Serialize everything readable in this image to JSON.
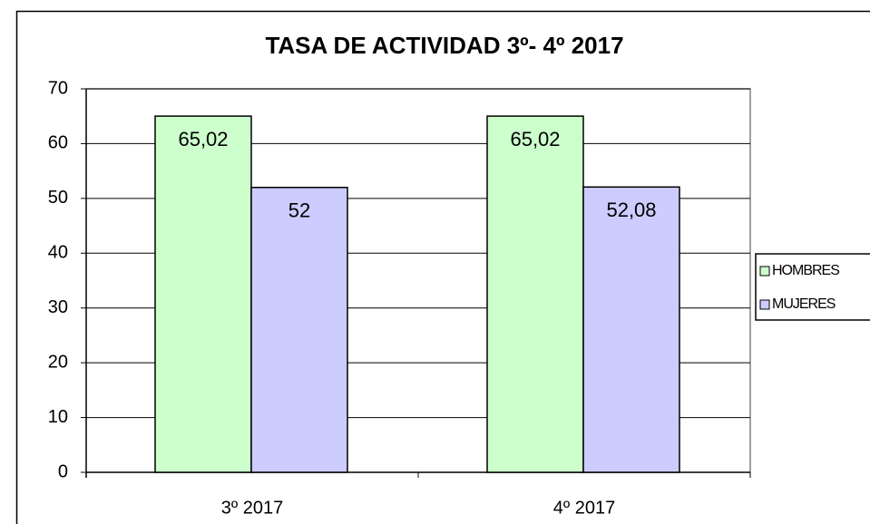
{
  "chart_data": {
    "type": "bar",
    "title": "TASA DE ACTIVIDAD 3º- 4º 2017",
    "categories": [
      "3º 2017",
      "4º 2017"
    ],
    "series": [
      {
        "name": "HOMBRES",
        "color": "#ccffcc",
        "values": [
          65.02,
          65.02
        ],
        "value_labels": [
          "65,02",
          "65,02"
        ]
      },
      {
        "name": "MUJERES",
        "color": "#ccccff",
        "values": [
          52,
          52.08
        ],
        "value_labels": [
          "52",
          "52,08"
        ]
      }
    ],
    "ylim": [
      0,
      70
    ],
    "yticks": [
      0,
      10,
      20,
      30,
      40,
      50,
      60,
      70
    ],
    "grid": true,
    "legend": "right"
  }
}
